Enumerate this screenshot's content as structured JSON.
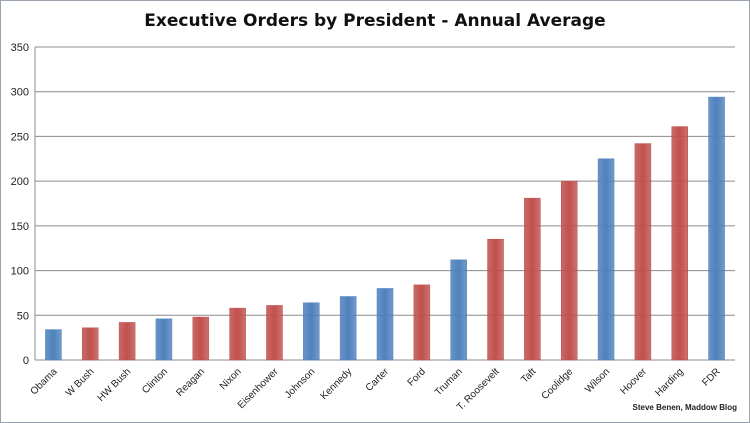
{
  "chart_data": {
    "type": "bar",
    "title": "Executive Orders by President - Annual Average",
    "categories": [
      "Obama",
      "W Bush",
      "HW Bush",
      "Clinton",
      "Reagan",
      "Nixon",
      "Eisenhower",
      "Johnson",
      "Kennedy",
      "Carter",
      "Ford",
      "Truman",
      "T. Roosevelt",
      "Taft",
      "Coolidge",
      "Wilson",
      "Hoover",
      "Harding",
      "FDR"
    ],
    "values": [
      34,
      36,
      42,
      46,
      48,
      58,
      61,
      64,
      71,
      80,
      84,
      112,
      135,
      181,
      200,
      225,
      242,
      261,
      294
    ],
    "party": [
      "D",
      "R",
      "R",
      "D",
      "R",
      "R",
      "R",
      "D",
      "D",
      "D",
      "R",
      "D",
      "R",
      "R",
      "R",
      "D",
      "R",
      "R",
      "D"
    ],
    "colors": {
      "D": "#4f81bd",
      "R": "#c0504d"
    },
    "ylim": [
      0,
      350
    ],
    "yticks": [
      0,
      50,
      100,
      150,
      200,
      250,
      300,
      350
    ],
    "xlabel": "",
    "ylabel": "",
    "grid": true,
    "legend": "none"
  },
  "credit": "Steve Benen, Maddow Blog"
}
